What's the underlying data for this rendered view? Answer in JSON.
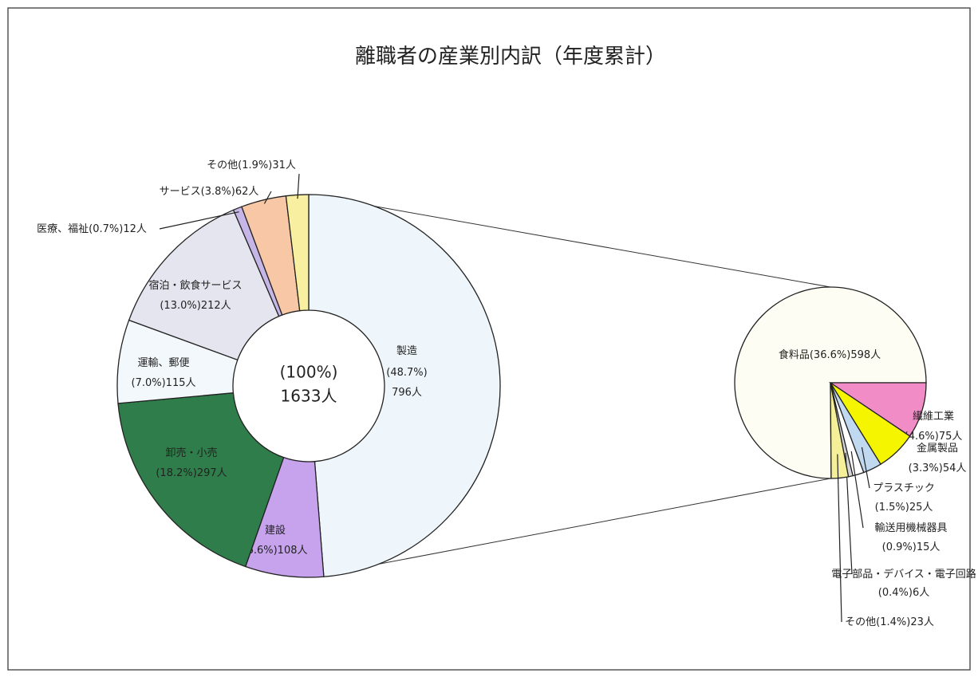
{
  "chart_data": [
    {
      "type": "donut",
      "title": "離職者の産業別内訳（年度累計）",
      "center_labels": [
        "(100%)",
        "1633人"
      ],
      "labels": [
        "製造",
        "建設",
        "卸売・小売",
        "運輸、郵便",
        "宿泊・飲食サービス",
        "医療、福祉",
        "サービス",
        "その他"
      ],
      "values": [
        796,
        108,
        297,
        115,
        212,
        12,
        62,
        31
      ],
      "percent_labels": [
        "(48.7%)",
        "(6.6%)",
        "(18.2%)",
        "(7.0%)",
        "(13.0%)",
        "(0.7%)",
        "(3.8%)",
        "(1.9%)"
      ],
      "value_labels": [
        "796人",
        "108人",
        "297人",
        "115人",
        "212人",
        "12人",
        "62人",
        "31人"
      ],
      "colors": [
        "#eef6fb",
        "#c7a3ee",
        "#2f7d4a",
        "#f2f8fb",
        "#e5e5ef",
        "#c6b6e8",
        "#f8c8a6",
        "#f8f0a0"
      ]
    },
    {
      "type": "pie",
      "labels": [
        "食料品",
        "繊維工業",
        "金属製品",
        "プラスチック",
        "輸送用機械器具",
        "電子部品・デバイス・電子回路",
        "その他"
      ],
      "values": [
        598,
        75,
        54,
        25,
        15,
        6,
        23
      ],
      "percent_labels": [
        "(36.6%)",
        "(4.6%)",
        "(3.3%)",
        "(1.5%)",
        "(0.9%)",
        "(0.4%)",
        "(1.4%)"
      ],
      "value_labels": [
        "598人",
        "75人",
        "54人",
        "25人",
        "15人",
        "6人",
        "23人"
      ],
      "colors": [
        "#fdfdf3",
        "#f28cc6",
        "#f5f500",
        "#c0d8f0",
        "#ffffff",
        "#d4d4d4",
        "#f5ef9a"
      ]
    }
  ]
}
